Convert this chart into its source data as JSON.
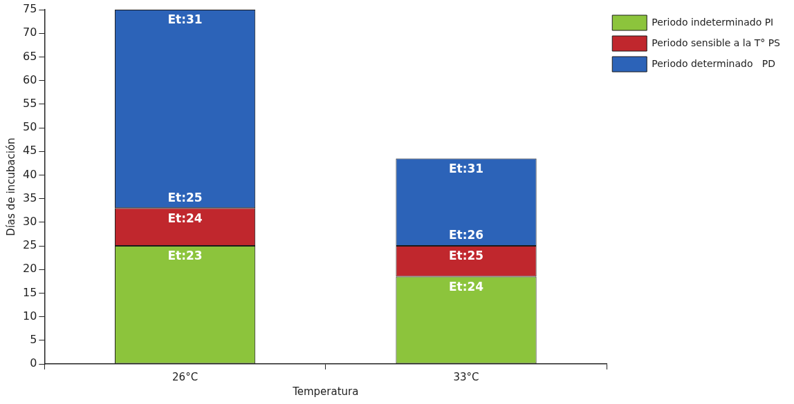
{
  "chart_data": {
    "type": "bar",
    "stacked": true,
    "xlabel": "Temperatura",
    "ylabel": "Días de incubación",
    "categories": [
      "26°C",
      "33°C"
    ],
    "series": [
      {
        "name": "Periodo indeterminado PI",
        "color": "#8cc43c",
        "values": [
          25,
          18.5
        ]
      },
      {
        "name": "Periodo sensible a la T° PS",
        "color": "#c0272d",
        "values": [
          8,
          6.5
        ]
      },
      {
        "name": "Periodo determinado   PD",
        "color": "#2c63b8",
        "values": [
          42,
          18.5
        ]
      }
    ],
    "ylim": [
      0,
      75
    ],
    "yticks": [
      0,
      5,
      10,
      15,
      20,
      25,
      30,
      35,
      40,
      45,
      50,
      55,
      60,
      65,
      70,
      75
    ],
    "grid": false,
    "legend": "top right",
    "annotations": [
      {
        "text": "Et:31",
        "x": "26°C",
        "y": 75
      },
      {
        "text": "Et:25",
        "x": "26°C",
        "y": 33
      },
      {
        "text": "Et:24",
        "x": "26°C",
        "y": 33
      },
      {
        "text": "Et:23",
        "x": "26°C",
        "y": 25
      },
      {
        "text": "Et:31",
        "x": "33°C",
        "y": 43.5
      },
      {
        "text": "Et:26",
        "x": "33°C",
        "y": 25
      },
      {
        "text": "Et:25",
        "x": "33°C",
        "y": 25
      },
      {
        "text": "Et:24",
        "x": "33°C",
        "y": 18.5
      }
    ]
  }
}
